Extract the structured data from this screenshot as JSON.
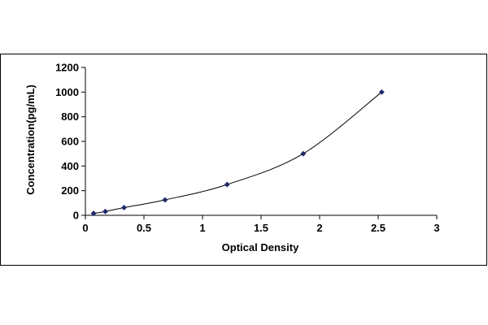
{
  "chart_data": {
    "type": "scatter",
    "title": "",
    "xlabel": "Optical Density",
    "ylabel": "Concentration(pg/mL)",
    "xlim": [
      0,
      3
    ],
    "ylim": [
      0,
      1200
    ],
    "xticks": [
      "0",
      "0.5",
      "1",
      "1.5",
      "2",
      "2.5",
      "3"
    ],
    "yticks": [
      "0",
      "200",
      "400",
      "600",
      "800",
      "1000",
      "1200"
    ],
    "grid": false,
    "legend": "none",
    "series": [
      {
        "x": [
          0.07,
          0.17,
          0.33,
          0.68,
          1.21,
          1.86,
          2.53
        ],
        "y": [
          15.6,
          31.2,
          62.5,
          125,
          250,
          500,
          1000
        ],
        "color": "#1f2a6b",
        "marker": "diamond",
        "fit": "smooth-curve"
      }
    ]
  }
}
